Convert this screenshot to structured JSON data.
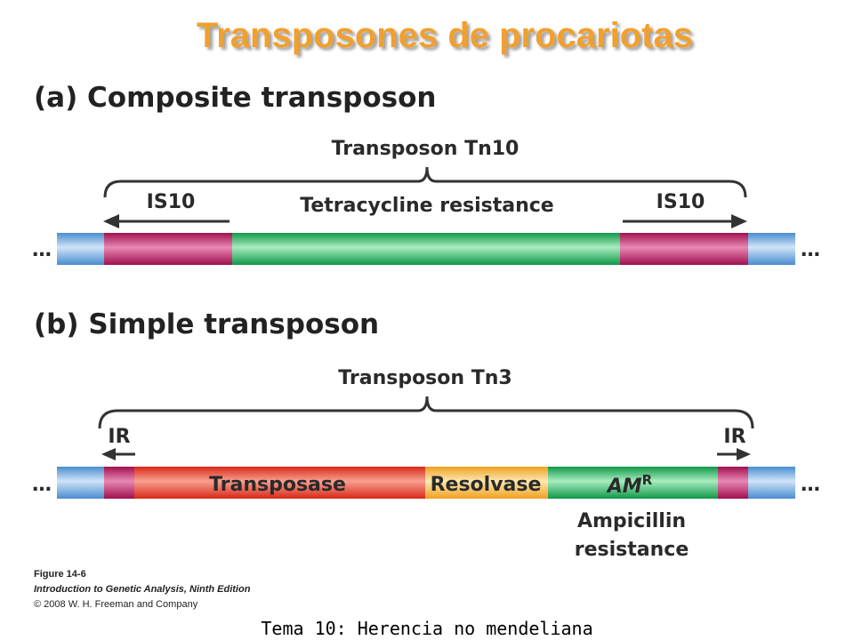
{
  "title": "Transposones de procariotas",
  "composite": {
    "heading": "(a) Composite transposon",
    "transposon_name": "Transposon Tn10",
    "left_is": "IS10",
    "middle": "Tetracycline resistance",
    "right_is": "IS10",
    "ellipsis": "…"
  },
  "simple": {
    "heading": "(b) Simple transposon",
    "transposon_name": "Transposon Tn3",
    "left_ir": "IR",
    "right_ir": "IR",
    "transposase": "Transposase",
    "resolvase": "Resolvase",
    "amr_base": "AM",
    "amr_sup": "R",
    "ampicillin_line1": "Ampicillin",
    "ampicillin_line2": "resistance",
    "ellipsis": "…"
  },
  "caption": {
    "figure": "Figure 14-6",
    "book": "Introduction to Genetic Analysis, Ninth Edition",
    "copyright": "© 2008 W. H. Freeman and Company"
  },
  "footer": "Tema 10: Herencia no mendeliana",
  "colors": {
    "title": "#f0a030",
    "flank_blue": "#6aaae0",
    "is_magenta": "#b5185e",
    "tet_green": "#22b060",
    "transposase_red": "#e83828",
    "resolvase_orange": "#f8b030",
    "amp_green": "#22b060"
  }
}
